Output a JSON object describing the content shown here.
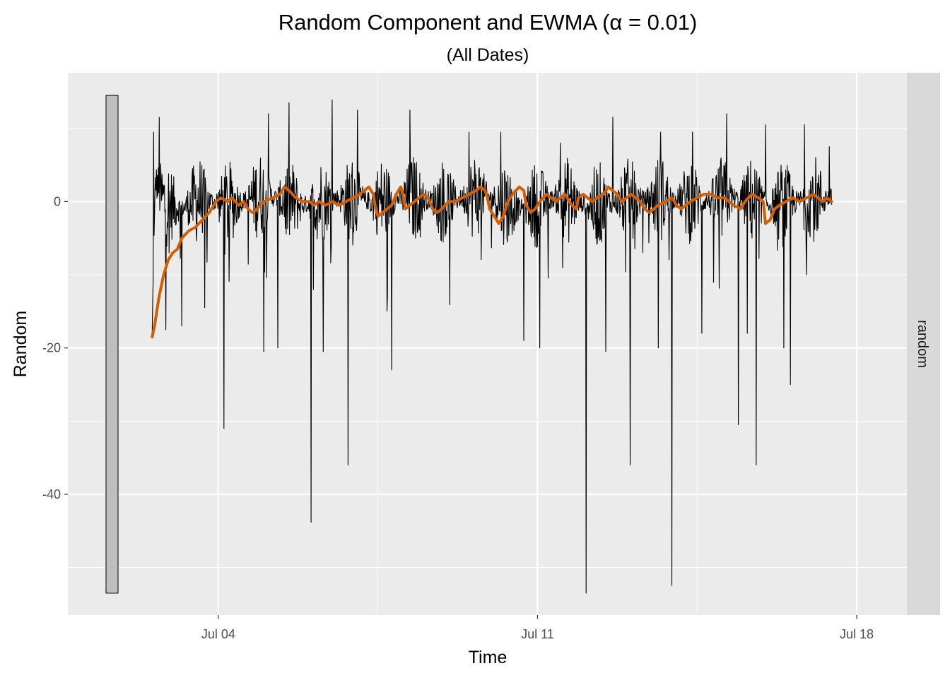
{
  "chart_data": {
    "type": "line",
    "title": "Random Component and EWMA (α = 0.01)",
    "subtitle": "(All Dates)",
    "xlabel": "Time",
    "ylabel": "Random",
    "facet_label": "random",
    "x_ticks": [
      "Jul 04",
      "Jul 11",
      "Jul 18"
    ],
    "x_tick_dates": [
      "2023-07-04",
      "2023-07-11",
      "2023-07-18"
    ],
    "y_ticks": [
      -40,
      -20,
      0
    ],
    "xlim": [
      "2023-07-00.7",
      "2023-07-19.1"
    ],
    "ylim": [
      -56.5,
      17.6
    ],
    "grid": true,
    "colors": {
      "panel_background": "#ebebeb",
      "grid": "#ffffff",
      "strip_background": "#d9d9d9",
      "random_series": "#000000",
      "ewma_series": "#d55e00",
      "range_bar": "#bebebe"
    },
    "range_bar": {
      "ymin": -53.5,
      "ymax": 14.5
    },
    "series": [
      {
        "role": "random",
        "x_start": "2023-07-02.55",
        "x_end": "2023-07-17.45",
        "level_points": [
          [
            2.55,
            -17
          ],
          [
            2.62,
            3
          ],
          [
            2.8,
            0
          ],
          [
            3.2,
            -1
          ],
          [
            3.6,
            0.5
          ],
          [
            4.2,
            -0.5
          ],
          [
            5.0,
            1
          ],
          [
            5.8,
            -0.5
          ],
          [
            6.6,
            0.5
          ],
          [
            7.4,
            0
          ],
          [
            8.2,
            0.5
          ],
          [
            9.0,
            0
          ],
          [
            9.8,
            1
          ],
          [
            10.6,
            -1
          ],
          [
            11.4,
            0.5
          ],
          [
            12.2,
            -0.5
          ],
          [
            13.0,
            0
          ],
          [
            13.8,
            0.5
          ],
          [
            14.6,
            0
          ],
          [
            15.4,
            0.5
          ],
          [
            16.2,
            -0.5
          ],
          [
            17.0,
            0.5
          ],
          [
            17.45,
            0.5
          ]
        ],
        "noise_amplitude": 6,
        "spikes": [
          [
            2.55,
            -18
          ],
          [
            2.85,
            -17.5
          ],
          [
            3.2,
            -17
          ],
          [
            3.7,
            -14.5
          ],
          [
            4.12,
            -31
          ],
          [
            5.0,
            -20.5
          ],
          [
            5.3,
            -20
          ],
          [
            6.03,
            -43.8
          ],
          [
            6.3,
            -20.5
          ],
          [
            6.85,
            -36
          ],
          [
            7.8,
            -23
          ],
          [
            8.2,
            -25
          ],
          [
            10.7,
            -19
          ],
          [
            11.05,
            -20
          ],
          [
            12.07,
            -53.5
          ],
          [
            12.5,
            -20.5
          ],
          [
            13.03,
            -36
          ],
          [
            13.65,
            -20
          ],
          [
            13.95,
            -52.5
          ],
          [
            14.6,
            -18
          ],
          [
            15.4,
            -30.5
          ],
          [
            15.6,
            -18
          ],
          [
            15.8,
            -36
          ],
          [
            16.4,
            -20
          ],
          [
            16.55,
            -25
          ],
          [
            16.9,
            -10
          ]
        ],
        "peaks": [
          [
            2.58,
            9.5
          ],
          [
            2.7,
            11.5
          ],
          [
            5.1,
            12
          ],
          [
            5.55,
            13.5
          ],
          [
            6.5,
            13.9
          ],
          [
            7.05,
            12.5
          ],
          [
            8.2,
            12.5
          ],
          [
            9.5,
            9.5
          ],
          [
            10.2,
            9.5
          ],
          [
            11.5,
            8
          ],
          [
            12.65,
            11.5
          ],
          [
            13.7,
            9.5
          ],
          [
            14.4,
            9.5
          ],
          [
            15.15,
            12
          ],
          [
            16.0,
            10.5
          ],
          [
            16.85,
            10.5
          ],
          [
            17.4,
            7.5
          ]
        ]
      },
      {
        "role": "ewma",
        "points": [
          [
            2.55,
            -18.5
          ],
          [
            2.6,
            -17
          ],
          [
            2.7,
            -13
          ],
          [
            2.8,
            -10
          ],
          [
            2.9,
            -8
          ],
          [
            3.0,
            -7
          ],
          [
            3.1,
            -6.5
          ],
          [
            3.2,
            -5
          ],
          [
            3.35,
            -4
          ],
          [
            3.5,
            -3.5
          ],
          [
            3.65,
            -2.5
          ],
          [
            3.8,
            -1.5
          ],
          [
            3.95,
            0
          ],
          [
            4.05,
            0.5
          ],
          [
            4.2,
            0
          ],
          [
            4.3,
            0.5
          ],
          [
            4.45,
            -0.5
          ],
          [
            4.55,
            0
          ],
          [
            4.65,
            -1
          ],
          [
            4.75,
            -1.5
          ],
          [
            4.85,
            -1
          ],
          [
            5.0,
            0
          ],
          [
            5.2,
            0.5
          ],
          [
            5.35,
            1
          ],
          [
            5.45,
            2
          ],
          [
            5.55,
            1.5
          ],
          [
            5.7,
            0.5
          ],
          [
            5.85,
            0
          ],
          [
            6.0,
            0
          ],
          [
            6.1,
            -0.5
          ],
          [
            6.2,
            0
          ],
          [
            6.35,
            -0.5
          ],
          [
            6.5,
            0
          ],
          [
            6.65,
            -0.5
          ],
          [
            6.8,
            0
          ],
          [
            6.95,
            0.5
          ],
          [
            7.1,
            1
          ],
          [
            7.2,
            1.5
          ],
          [
            7.3,
            2
          ],
          [
            7.4,
            1
          ],
          [
            7.45,
            -1
          ],
          [
            7.5,
            -2
          ],
          [
            7.6,
            -1.5
          ],
          [
            7.7,
            -1
          ],
          [
            7.8,
            -0.5
          ],
          [
            7.9,
            1
          ],
          [
            8.0,
            2
          ],
          [
            8.05,
            1
          ],
          [
            8.1,
            -1
          ],
          [
            8.2,
            -0.5
          ],
          [
            8.3,
            0
          ],
          [
            8.4,
            0.5
          ],
          [
            8.5,
            1
          ],
          [
            8.6,
            0.5
          ],
          [
            8.7,
            -1
          ],
          [
            8.8,
            -1.5
          ],
          [
            8.9,
            -1
          ],
          [
            9.05,
            0
          ],
          [
            9.2,
            0
          ],
          [
            9.35,
            0.5
          ],
          [
            9.5,
            1
          ],
          [
            9.65,
            1.5
          ],
          [
            9.75,
            2
          ],
          [
            9.85,
            1.5
          ],
          [
            9.9,
            0.5
          ],
          [
            9.95,
            -1
          ],
          [
            10.05,
            -2
          ],
          [
            10.15,
            -3
          ],
          [
            10.25,
            -2
          ],
          [
            10.35,
            0
          ],
          [
            10.45,
            1
          ],
          [
            10.6,
            2
          ],
          [
            10.7,
            1.5
          ],
          [
            10.75,
            -0.5
          ],
          [
            10.85,
            -1.5
          ],
          [
            10.95,
            -1
          ],
          [
            11.05,
            0
          ],
          [
            11.2,
            1
          ],
          [
            11.3,
            0.5
          ],
          [
            11.4,
            0
          ],
          [
            11.5,
            0.5
          ],
          [
            11.6,
            1
          ],
          [
            11.75,
            -0.5
          ],
          [
            11.85,
            -1
          ],
          [
            11.9,
            0.5
          ],
          [
            12.0,
            1
          ],
          [
            12.1,
            0.5
          ],
          [
            12.2,
            0
          ],
          [
            12.3,
            0.5
          ],
          [
            12.45,
            1
          ],
          [
            12.55,
            2
          ],
          [
            12.65,
            1.5
          ],
          [
            12.75,
            1
          ],
          [
            12.85,
            0
          ],
          [
            12.95,
            0.5
          ],
          [
            13.05,
            1
          ],
          [
            13.15,
            0.5
          ],
          [
            13.25,
            0
          ],
          [
            13.35,
            -1
          ],
          [
            13.45,
            -1.5
          ],
          [
            13.55,
            -1
          ],
          [
            13.65,
            -0.5
          ],
          [
            13.8,
            0
          ],
          [
            13.95,
            0.5
          ],
          [
            14.05,
            -0.5
          ],
          [
            14.15,
            -1
          ],
          [
            14.25,
            -0.5
          ],
          [
            14.35,
            0
          ],
          [
            14.5,
            0.5
          ],
          [
            14.65,
            1
          ],
          [
            14.8,
            1
          ],
          [
            14.95,
            0.5
          ],
          [
            15.1,
            0.5
          ],
          [
            15.2,
            0
          ],
          [
            15.3,
            -0.5
          ],
          [
            15.45,
            -1
          ],
          [
            15.55,
            0
          ],
          [
            15.7,
            1
          ],
          [
            15.85,
            0.5
          ],
          [
            15.95,
            0
          ],
          [
            16.0,
            -3
          ],
          [
            16.1,
            -2.5
          ],
          [
            16.2,
            -1
          ],
          [
            16.3,
            -0.5
          ],
          [
            16.45,
            0
          ],
          [
            16.6,
            0.5
          ],
          [
            16.75,
            0
          ],
          [
            16.9,
            0.5
          ],
          [
            17.05,
            1
          ],
          [
            17.15,
            0.5
          ],
          [
            17.25,
            0
          ],
          [
            17.35,
            0.5
          ],
          [
            17.45,
            0
          ]
        ]
      }
    ]
  }
}
